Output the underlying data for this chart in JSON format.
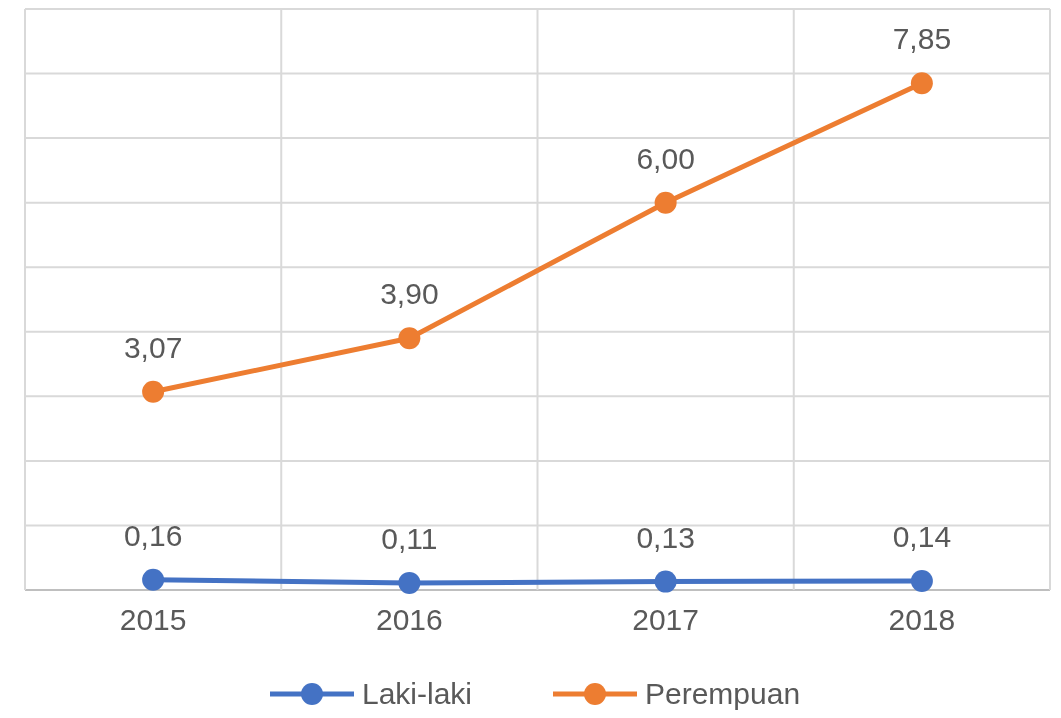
{
  "chart_data": {
    "type": "line",
    "categories": [
      "2015",
      "2016",
      "2017",
      "2018"
    ],
    "series": [
      {
        "name": "Laki-laki",
        "color": "#4472c4",
        "values": [
          0.16,
          0.11,
          0.13,
          0.14
        ],
        "value_labels": [
          "0,16",
          "0,11",
          "0,13",
          "0,14"
        ]
      },
      {
        "name": "Perempuan",
        "color": "#ed7d31",
        "values": [
          3.07,
          3.9,
          6.0,
          7.85
        ],
        "value_labels": [
          "3,07",
          "3,90",
          "6,00",
          "7,85"
        ]
      }
    ],
    "ylim": [
      0,
      9
    ],
    "yticks": [
      {
        "value": 0,
        "label": null
      },
      {
        "value": 1,
        "label": null
      },
      {
        "value": 2,
        "label": null
      },
      {
        "value": 3,
        "label": null
      },
      {
        "value": 4,
        "label": null
      },
      {
        "value": 5,
        "label": null
      },
      {
        "value": 6,
        "label": null
      },
      {
        "value": 7,
        "label": null
      },
      {
        "value": 8,
        "label": null
      },
      {
        "value": 9,
        "label": null
      }
    ],
    "tick_labels": "x",
    "grid": true,
    "legend": "bottom",
    "marker": "circle",
    "line_style": "solid"
  }
}
